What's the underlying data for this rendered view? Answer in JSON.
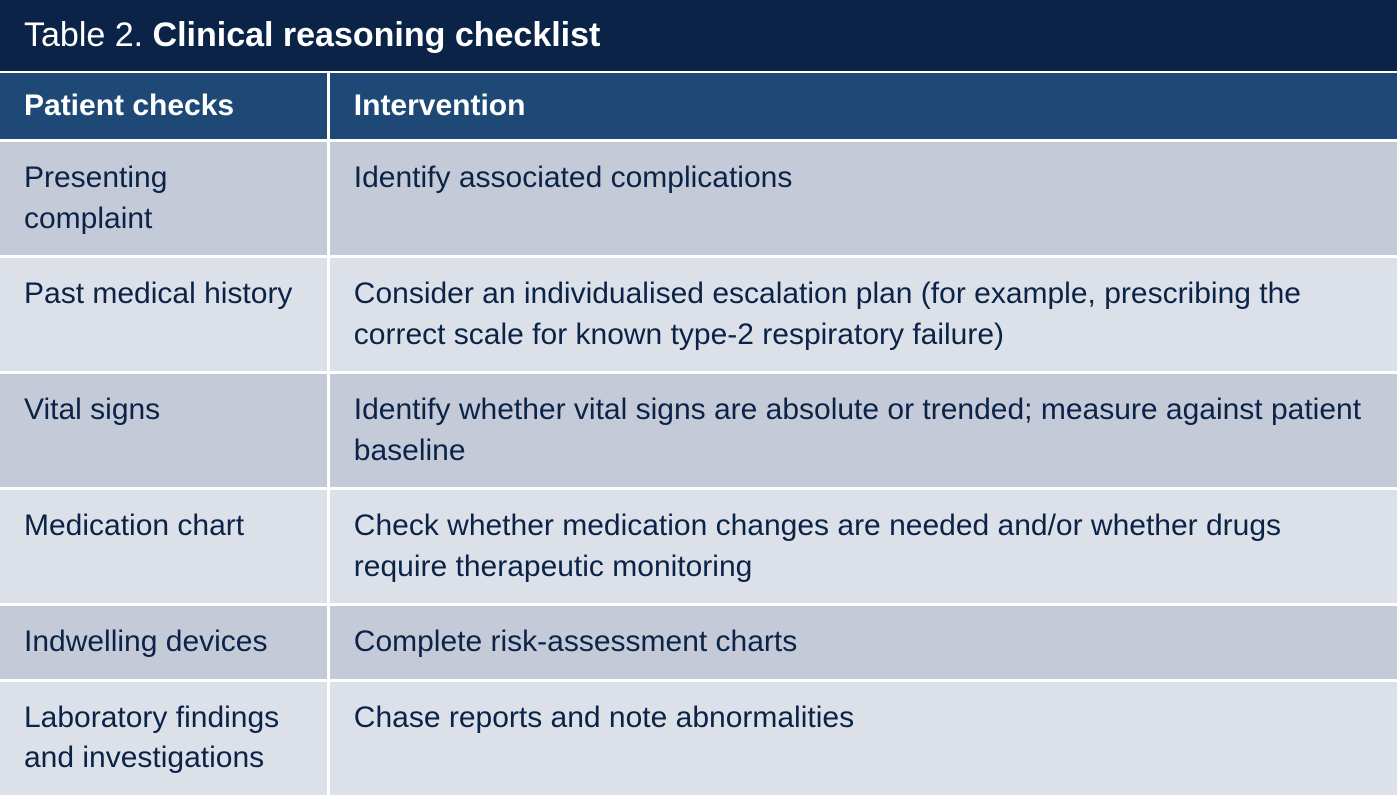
{
  "title_prefix": "Table 2. ",
  "title_main": "Clinical reasoning checklist",
  "columns": [
    {
      "label": "Patient checks"
    },
    {
      "label": "Intervention"
    }
  ],
  "rows": [
    {
      "check": "Presenting complaint",
      "intervention": "Identify associated complications"
    },
    {
      "check": "Past medical history",
      "intervention": "Consider an individualised escalation plan (for example, prescribing the correct scale for known type-2 respiratory failure)"
    },
    {
      "check": "Vital signs",
      "intervention": "Identify whether vital signs are absolute or trended; measure against patient baseline"
    },
    {
      "check": "Medication chart",
      "intervention": "Check whether medication changes are needed and/or whether drugs require therapeutic monitoring"
    },
    {
      "check": "Indwelling devices",
      "intervention": "Complete risk-assessment charts"
    },
    {
      "check": "Laboratory findings and investigations",
      "intervention": "Chase reports and note abnormalities"
    }
  ],
  "style": {
    "type": "table",
    "title_bg": "#0a2347",
    "title_color": "#ffffff",
    "header_bg": "#1e4976",
    "header_color": "#ffffff",
    "row_odd_bg": "#c5cad9",
    "row_even_bg": "#dce0e9",
    "cell_text_color": "#0a2347",
    "border_color": "#ffffff",
    "border_width": 3,
    "title_fontsize": 34,
    "header_fontsize": 30,
    "cell_fontsize": 30,
    "col_widths": [
      "23.5%",
      "76.5%"
    ]
  }
}
